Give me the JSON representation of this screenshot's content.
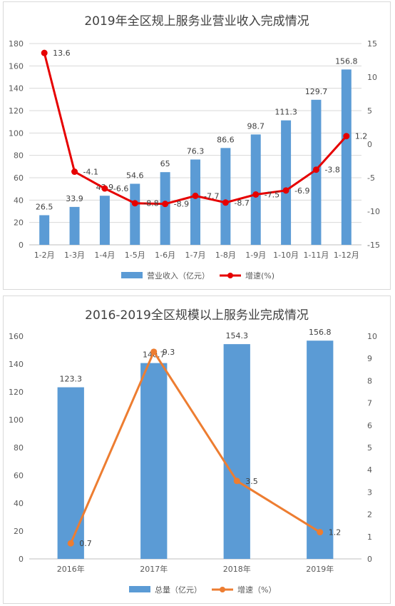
{
  "chart_data": [
    {
      "type": "bar",
      "title": "2019年全区规上服务业营业收入完成情况",
      "categories": [
        "1-2月",
        "1-3月",
        "1-4月",
        "1-5月",
        "1-6月",
        "1-7月",
        "1-8月",
        "1-9月",
        "1-10月",
        "1-11月",
        "1-12月"
      ],
      "ylim": [
        0,
        180
      ],
      "y_ticks": [
        "0",
        "20",
        "40",
        "60",
        "80",
        "100",
        "120",
        "140",
        "160",
        "180"
      ],
      "y2lim": [
        -15,
        15
      ],
      "y2_ticks": [
        "-15",
        "-10",
        "-5",
        "0",
        "5",
        "10",
        "15"
      ],
      "grid": true,
      "legend_position": "bottom",
      "series": [
        {
          "name": "营业收入（亿元）",
          "kind": "bar",
          "axis": "left",
          "values": [
            26.5,
            33.9,
            43.9,
            54.6,
            65,
            76.3,
            86.6,
            98.7,
            111.3,
            129.7,
            156.8
          ],
          "labels": [
            "26.5",
            "33.9",
            "43.9",
            "54.6",
            "65",
            "76.3",
            "86.6",
            "98.7",
            "111.3",
            "129.7",
            "156.8"
          ]
        },
        {
          "name": "增速(%)",
          "kind": "line",
          "axis": "right",
          "values": [
            13.6,
            -4.1,
            -6.6,
            -8.8,
            -8.9,
            -7.7,
            -8.7,
            -7.5,
            -6.9,
            -3.8,
            1.2
          ],
          "labels": [
            "13.6",
            "-4.1",
            "-6.6",
            "-8.8",
            "-8.9",
            "-7.7",
            "-8.7",
            "-7.5",
            "-6.9",
            "-3.8",
            "1.2"
          ]
        }
      ],
      "colors": {
        "bar": "#5b9bd5",
        "line": "#e60000"
      }
    },
    {
      "type": "bar",
      "title": "2016-2019全区规模以上服务业完成情况",
      "categories": [
        "2016年",
        "2017年",
        "2018年",
        "2019年"
      ],
      "ylim": [
        0,
        160
      ],
      "y_ticks": [
        "0",
        "20",
        "40",
        "60",
        "80",
        "100",
        "120",
        "140",
        "160"
      ],
      "y2lim": [
        0,
        10
      ],
      "y2_ticks": [
        "0",
        "1",
        "2",
        "3",
        "4",
        "5",
        "6",
        "7",
        "8",
        "9",
        "10"
      ],
      "grid": false,
      "legend_position": "bottom",
      "series": [
        {
          "name": "总量（亿元）",
          "kind": "bar",
          "axis": "left",
          "values": [
            123.3,
            140.7,
            154.3,
            156.8
          ],
          "labels": [
            "123.3",
            "140.7",
            "154.3",
            "156.8"
          ]
        },
        {
          "name": "增速（%）",
          "kind": "line",
          "axis": "right",
          "values": [
            0.7,
            9.3,
            3.5,
            1.2
          ],
          "labels": [
            "0.7",
            "9.3",
            "3.5",
            "1.2"
          ]
        }
      ],
      "colors": {
        "bar": "#5b9bd5",
        "line": "#ed7d31"
      }
    }
  ]
}
